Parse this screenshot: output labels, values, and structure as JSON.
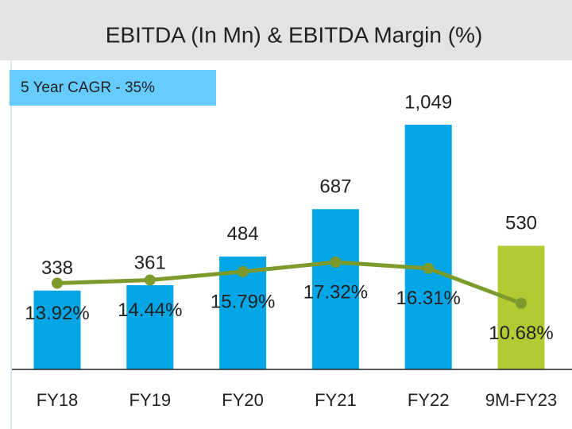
{
  "chart_data": {
    "type": "bar",
    "title": "EBITDA (In Mn) & EBITDA Margin (%)",
    "annotation": "5 Year  CAGR - 35%",
    "categories": [
      "FY18",
      "FY19",
      "FY20",
      "FY21",
      "FY22",
      "9M-FY23"
    ],
    "series": [
      {
        "type": "bar",
        "colors": [
          "#00a6e6",
          "#00a6e6",
          "#00a6e6",
          "#00a6e6",
          "#00a6e6",
          "#b3cb33"
        ],
        "values": [
          338,
          361,
          484,
          687,
          1049,
          530
        ],
        "value_labels": [
          "338",
          "361",
          "484",
          "687",
          "1,049",
          "530"
        ]
      },
      {
        "type": "line",
        "axis": "y2",
        "color": "#7d9a2c",
        "values": [
          13.92,
          14.44,
          15.79,
          17.32,
          16.31,
          10.68
        ],
        "value_labels": [
          "13.92%",
          "14.44%",
          "15.79%",
          "17.32%",
          "16.31%",
          "10.68%"
        ]
      }
    ]
  }
}
